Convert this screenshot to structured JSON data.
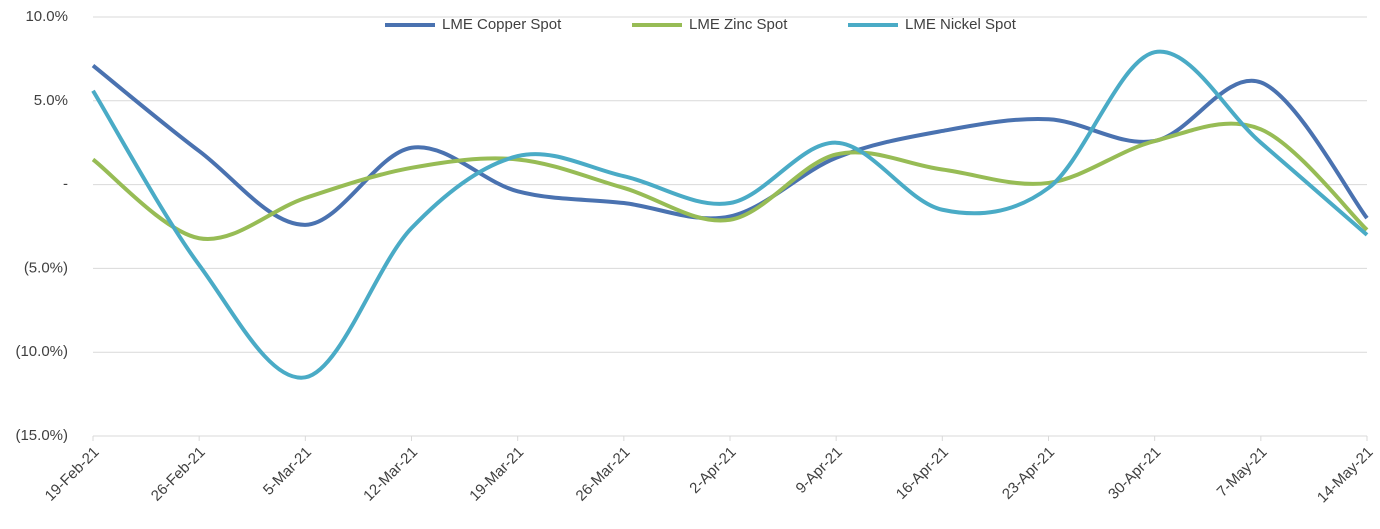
{
  "chart_data": {
    "type": "line",
    "categories": [
      "19-Feb-21",
      "26-Feb-21",
      "5-Mar-21",
      "12-Mar-21",
      "19-Mar-21",
      "26-Mar-21",
      "2-Apr-21",
      "9-Apr-21",
      "16-Apr-21",
      "23-Apr-21",
      "30-Apr-21",
      "7-May-21",
      "14-May-21"
    ],
    "series": [
      {
        "name": "LME Copper Spot",
        "color": "#4a72b0",
        "values": [
          7.1,
          2.0,
          -2.4,
          2.2,
          -0.4,
          -1.1,
          -1.9,
          1.6,
          3.2,
          3.9,
          2.6,
          6.1,
          -2.0
        ]
      },
      {
        "name": "LME Zinc Spot",
        "color": "#97bc55",
        "values": [
          1.5,
          -3.2,
          -0.8,
          1.0,
          1.5,
          -0.2,
          -2.1,
          1.8,
          0.9,
          0.1,
          2.6,
          3.3,
          -2.7
        ]
      },
      {
        "name": "LME Nickel Spot",
        "color": "#4aabc6",
        "values": [
          5.6,
          -4.8,
          -11.5,
          -2.6,
          1.7,
          0.5,
          -1.1,
          2.5,
          -1.5,
          -0.2,
          7.9,
          2.5,
          -3.0
        ]
      }
    ],
    "ylim": [
      -15,
      10
    ],
    "yticks": [
      {
        "value": 10,
        "label": "10.0%"
      },
      {
        "value": 5,
        "label": "5.0%"
      },
      {
        "value": 0,
        "label": "-"
      },
      {
        "value": -5,
        "label": "(5.0%)"
      },
      {
        "value": -10,
        "label": "(10.0%)"
      },
      {
        "value": -15,
        "label": "(15.0%)"
      }
    ],
    "grid": true,
    "legend": "top"
  }
}
